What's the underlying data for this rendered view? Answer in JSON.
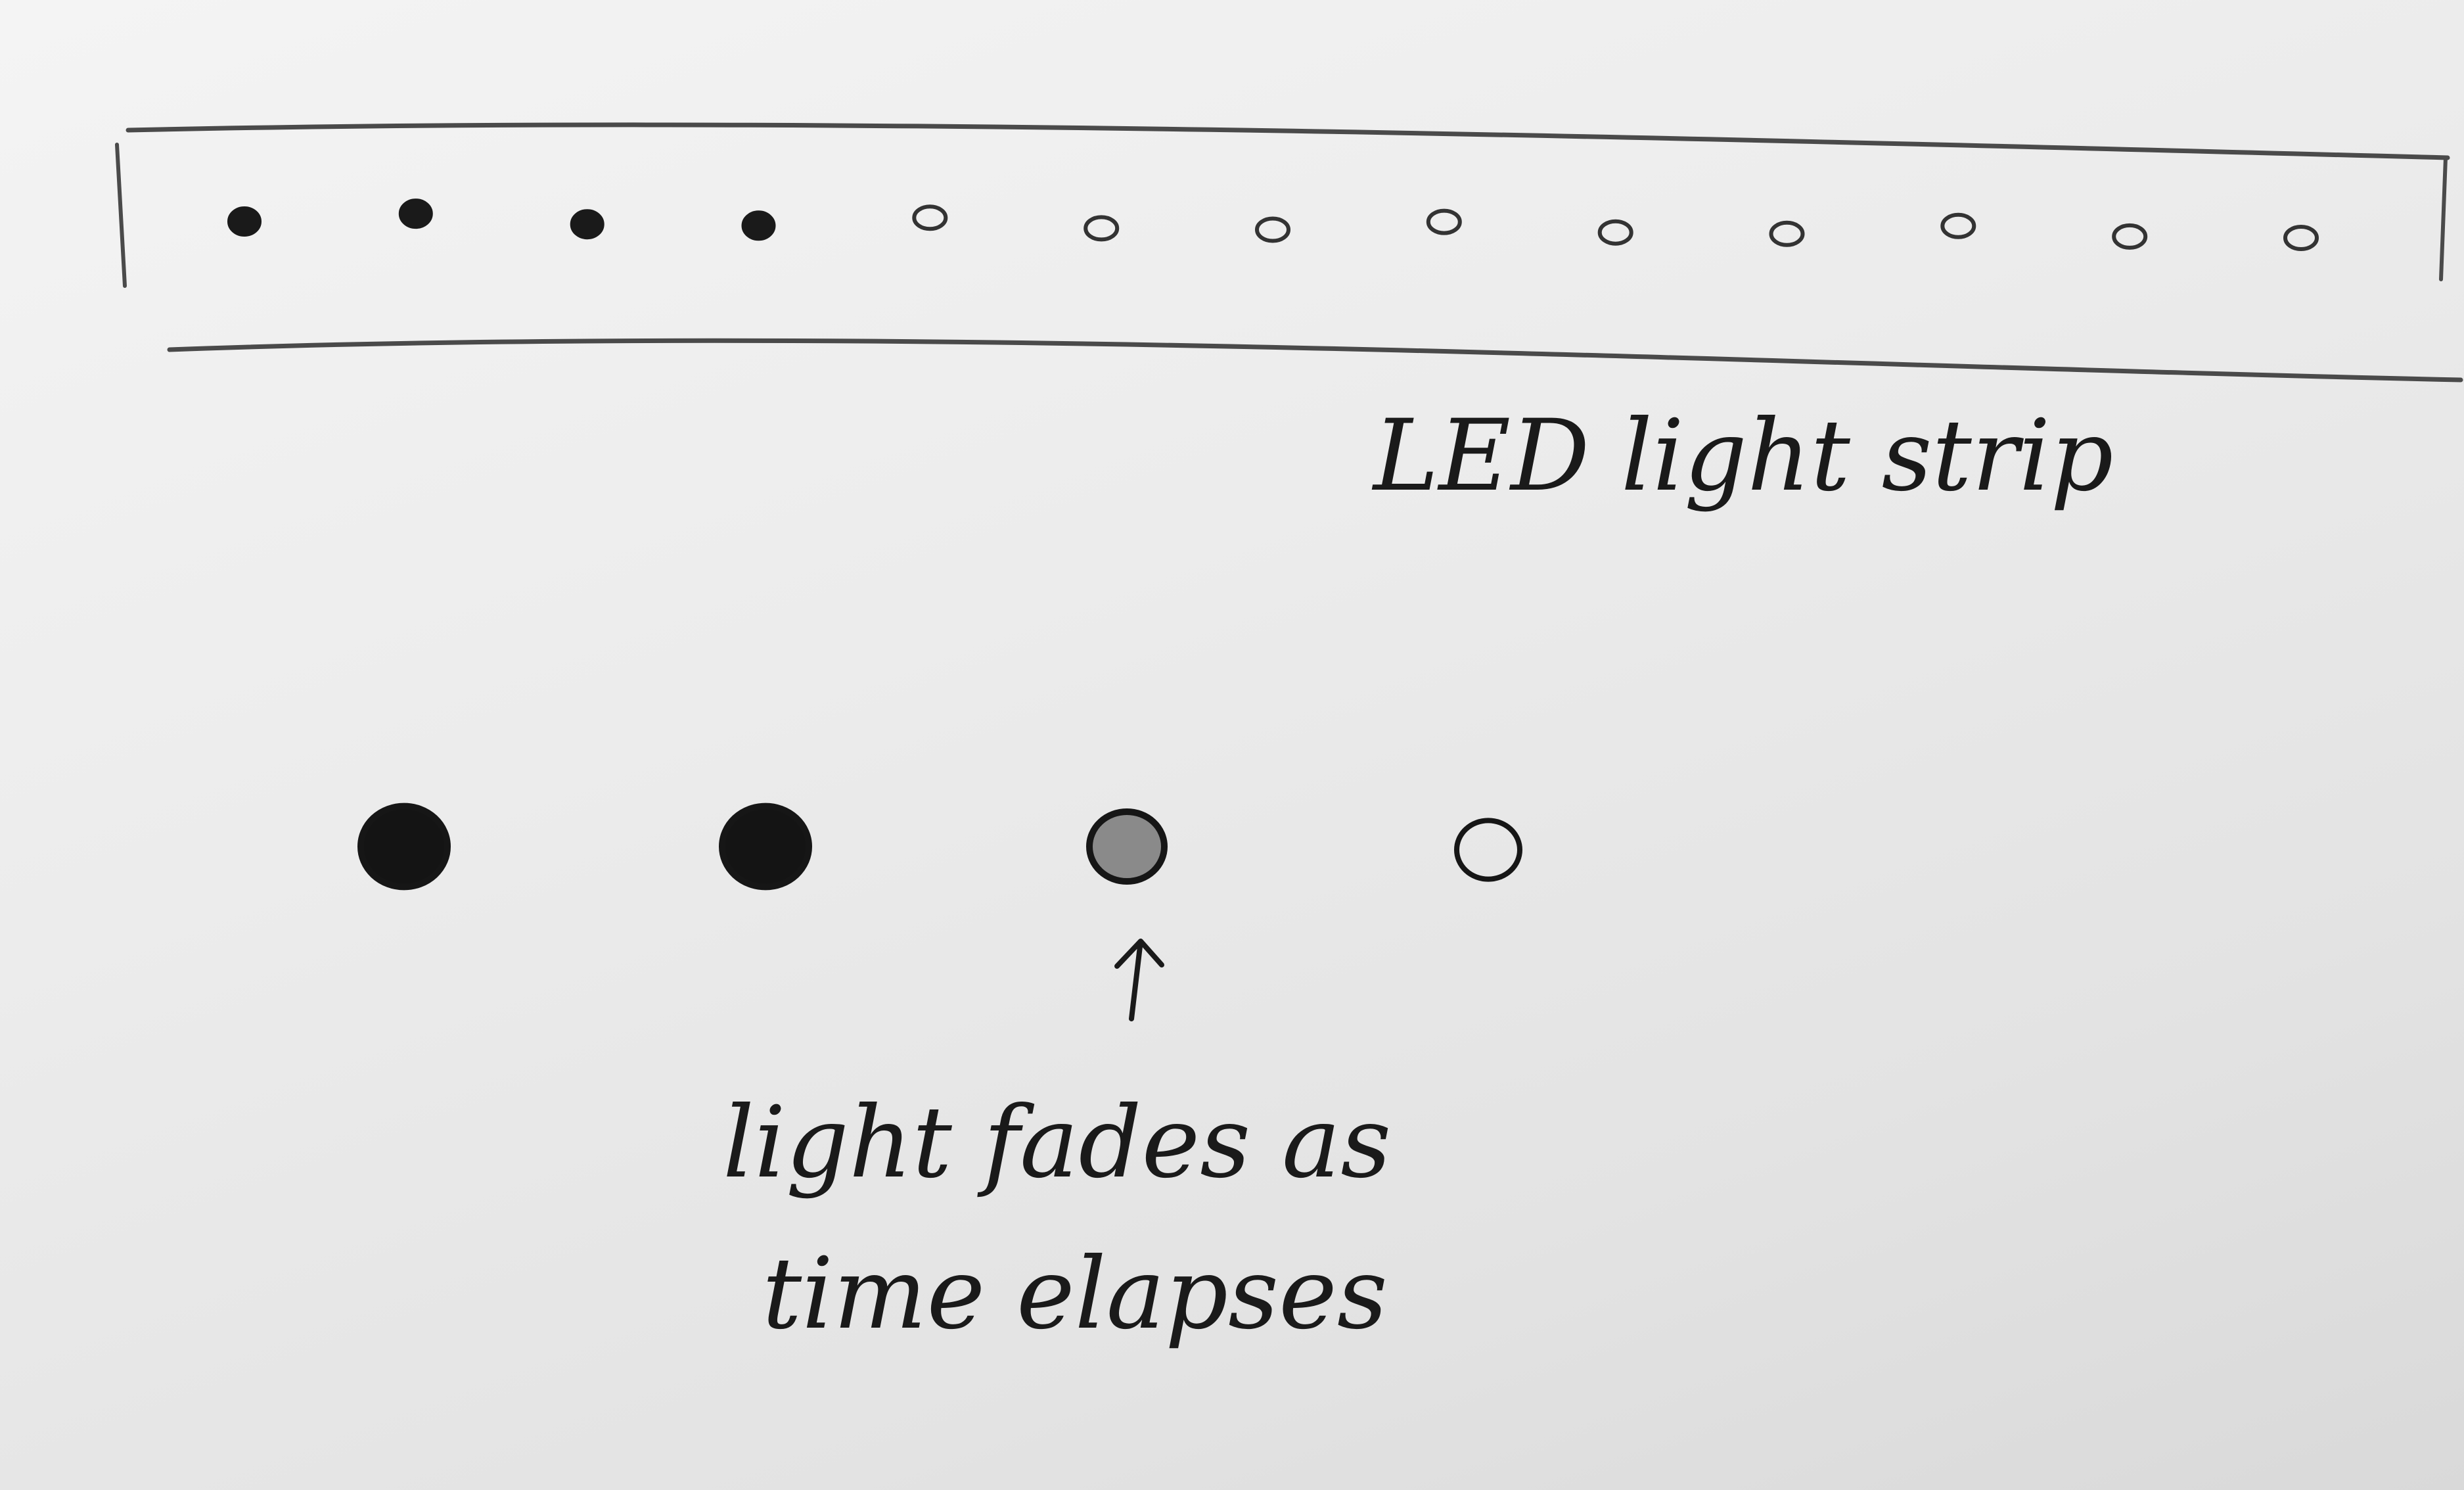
{
  "strip": {
    "caption": "LED light strip",
    "leds": [
      {
        "state": "on"
      },
      {
        "state": "on"
      },
      {
        "state": "on"
      },
      {
        "state": "on"
      },
      {
        "state": "off"
      },
      {
        "state": "off"
      },
      {
        "state": "off"
      },
      {
        "state": "off"
      },
      {
        "state": "off"
      },
      {
        "state": "off"
      },
      {
        "state": "off"
      },
      {
        "state": "off"
      },
      {
        "state": "off"
      }
    ]
  },
  "fade_sequence": {
    "steps": [
      {
        "brightness": 1.0
      },
      {
        "brightness": 1.0
      },
      {
        "brightness": 0.45
      },
      {
        "brightness": 0.0
      }
    ],
    "annotation_line1": "light fades as",
    "annotation_line2": "time elapses"
  },
  "colors": {
    "ink": "#1a1a1a",
    "pencil": "#4a4a4a",
    "paper": "#eeeeee"
  }
}
